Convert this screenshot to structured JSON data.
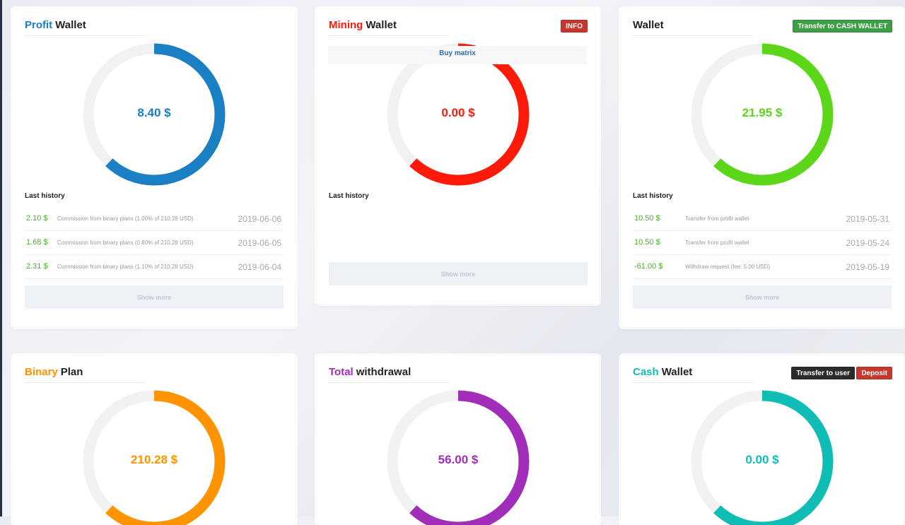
{
  "colors": {
    "blue": "#1b7fc3",
    "red": "#ff1a0a",
    "green": "#5cd619",
    "orange": "#ff9300",
    "purple": "#a12db8",
    "teal": "#0fbdb4",
    "track": "#f2f2f2"
  },
  "profit_wallet": {
    "title_accent": "Profit",
    "title_rest": "Wallet",
    "value": "8.40 $",
    "fill": 0.62,
    "history_label": "Last history",
    "history": [
      {
        "amount": "2.10 $",
        "desc": "Commission from binary plans (1.00% of 210.28 USD)",
        "date": "2019-06-06"
      },
      {
        "amount": "1.68 $",
        "desc": "Commission from binary plans (0.80% of 210.28 USD)",
        "date": "2019-06-05"
      },
      {
        "amount": "2.31 $",
        "desc": "Commission from binary plans (1.10% of 210.28 USD)",
        "date": "2019-06-04"
      }
    ],
    "show_more": "Show more"
  },
  "mining_wallet": {
    "title_accent": "Mining",
    "title_rest": "Wallet",
    "value": "0.00 $",
    "fill": 0.62,
    "info_badge": "INFO",
    "buy_matrix": "Buy matrix",
    "history_label": "Last history",
    "show_more": "Show more"
  },
  "wallet": {
    "title_rest": "Wallet",
    "value": "21.95 $",
    "fill": 0.62,
    "transfer_button": "Transfer to CASH WALLET",
    "history_label": "Last history",
    "history": [
      {
        "amount": "10.50 $",
        "desc": "Transfer from profit wallet",
        "date": "2019-05-31"
      },
      {
        "amount": "10.50 $",
        "desc": "Transfer from profit wallet",
        "date": "2019-05-24"
      },
      {
        "amount": "-61.00 $",
        "desc": "Withdraw request (fee: 5.00 USD)",
        "date": "2019-05-19"
      }
    ],
    "show_more": "Show more"
  },
  "binary_plan": {
    "title_accent": "Binary",
    "title_rest": "Plan",
    "value": "210.28 $",
    "fill": 0.62
  },
  "total_withdrawal": {
    "title_accent": "Total",
    "title_rest": "withdrawal",
    "value": "56.00 $",
    "fill": 0.62
  },
  "cash_wallet": {
    "title_accent": "Cash",
    "title_rest": "Wallet",
    "value": "0.00 $",
    "fill": 0.62,
    "transfer_user_button": "Transfer to user",
    "deposit_button": "Deposit"
  }
}
